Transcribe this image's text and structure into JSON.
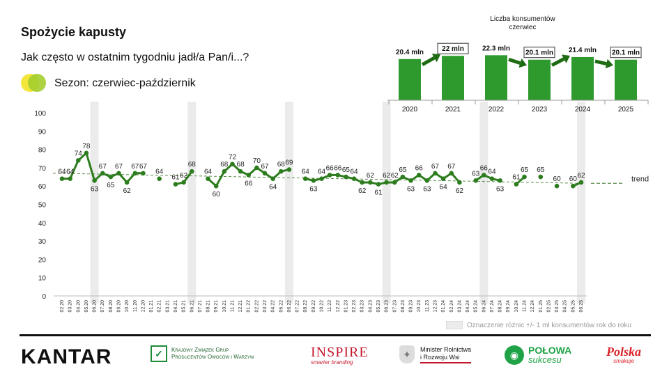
{
  "header": {
    "title": "Spożycie kapusty",
    "question": "Jak często w ostatnim tygodniu jadł/a Pan/i...?",
    "season_label": "Sezon: czerwiec-październik"
  },
  "colors": {
    "line": "#2d7d1e",
    "bar": "#2e9a2e",
    "arrow": "#1e6b14",
    "highlight": "#ebebeb",
    "trend": "#5a8a4a"
  },
  "legend": {
    "text": "Oznaczenie różnic +/- 1 ml konsumentów rok do roku"
  },
  "logos": {
    "kantar": "KANTAR",
    "kzg_line1": "Krajowy Związek Grup",
    "kzg_line2": "Producentów Owoców i Warzyw",
    "inspire": "INSPIRE",
    "inspire_sub": "smarter branding",
    "minister_line1": "Minister Rolnictwa",
    "minister_line2": "i Rozwoju Wsi",
    "polowa_main": "POŁOWA",
    "polowa_sub": "sukcesu",
    "polska_main": "Polska",
    "polska_sub": "smakuje"
  },
  "chart_data": [
    {
      "type": "line",
      "ylim": [
        0,
        100
      ],
      "yticks": [
        0,
        10,
        20,
        30,
        40,
        50,
        60,
        70,
        80,
        90,
        100
      ],
      "x": [
        "02.20",
        "03.20",
        "04.20",
        "05.20",
        "06.20",
        "07.20",
        "08.20",
        "09.20",
        "10.20",
        "11.20",
        "12.20",
        "01.21",
        "02.21",
        "03.21",
        "04.21",
        "05.21",
        "06.21",
        "07.21",
        "08.21",
        "09.21",
        "10.21",
        "11.21",
        "12.21",
        "01.22",
        "02.22",
        "03.22",
        "04.22",
        "05.22",
        "06.22",
        "07.22",
        "08.22",
        "09.22",
        "10.22",
        "11.22",
        "12.22",
        "01.23",
        "02.23",
        "03.23",
        "04.23",
        "05.23",
        "06.23",
        "07.23",
        "08.23",
        "09.23",
        "10.23",
        "11.23",
        "12.23",
        "01.24",
        "02.24",
        "03.24",
        "04.24",
        "05.24",
        "06.24",
        "07.24",
        "08.24",
        "09.24",
        "10.24",
        "11.24",
        "12.24",
        "01.25",
        "02.25",
        "03.25",
        "04.25",
        "05.25",
        "06.25"
      ],
      "values": [
        64,
        64,
        74,
        78,
        63,
        67,
        65,
        67,
        62,
        67,
        67,
        null,
        64,
        null,
        61,
        62,
        68,
        null,
        64,
        60,
        68,
        72,
        68,
        66,
        70,
        67,
        64,
        68,
        69,
        null,
        64,
        63,
        64,
        66,
        66,
        65,
        64,
        62,
        62,
        61,
        62,
        62,
        65,
        63,
        66,
        63,
        67,
        64,
        67,
        62,
        null,
        63,
        66,
        64,
        63,
        null,
        61,
        65,
        null,
        65,
        null,
        60,
        null,
        60,
        62
      ],
      "highlighted_months": [
        "06.20",
        "06.21",
        "06.22",
        "06.23",
        "06.24",
        "06.25"
      ],
      "trend": {
        "label": "trend",
        "start": 67,
        "end": 61.5
      }
    },
    {
      "type": "bar",
      "title": "Liczba konsumentów czerwiec",
      "categories": [
        "2020",
        "2021",
        "2022",
        "2023",
        "2024",
        "2025"
      ],
      "values": [
        20.4,
        22,
        22.3,
        20.1,
        21.4,
        20.1
      ],
      "labels": [
        "20.4 mln",
        "22 mln",
        "22.3 mln",
        "20.1 mln",
        "21.4 mln",
        "20.1 mln"
      ],
      "boxed": [
        false,
        true,
        false,
        true,
        false,
        true
      ],
      "arrows": [
        [
          "2020",
          "2021",
          "up"
        ],
        [
          "2022",
          "2023",
          "down"
        ],
        [
          "2023",
          "2024",
          "up"
        ],
        [
          "2024",
          "2025",
          "down"
        ]
      ]
    }
  ]
}
